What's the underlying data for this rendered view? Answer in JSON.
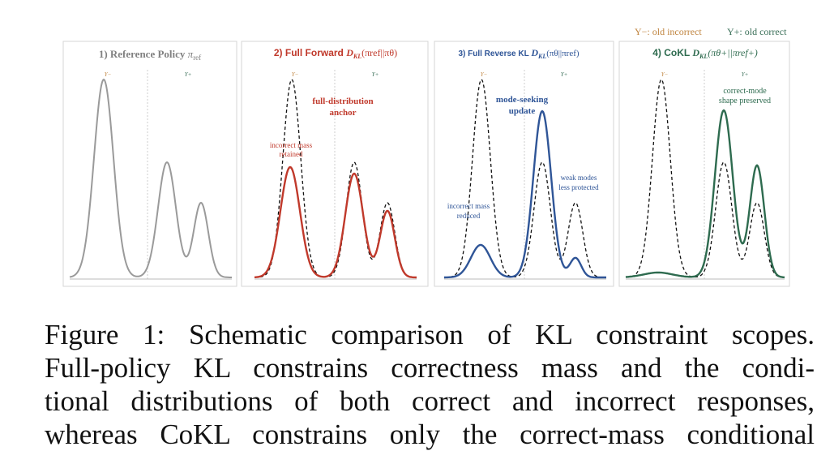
{
  "legend": {
    "incorrect": "Y−: old incorrect",
    "correct": "Y+: old correct",
    "incorrect_color": "#c08540",
    "correct_color": "#3a6f58"
  },
  "panels": [
    {
      "title_text": "1) Reference Policy ",
      "title_math": "π",
      "title_sub": "ref",
      "title_color": "#808080",
      "label_neg": "Y−",
      "label_pos": "Y+",
      "color": "#9a9a9a",
      "annotations": []
    },
    {
      "title_text": "2) Full Forward ",
      "title_math": "D",
      "title_sub": "KL",
      "title_args": "(πref||πθ)",
      "title_color": "#c0392b",
      "label_neg": "Y−",
      "label_pos": "Y+",
      "color": "#c0392b",
      "annotations": [
        {
          "lines": [
            "full-distribution",
            "anchor"
          ],
          "bold": true
        },
        {
          "lines": [
            "incorrect mass",
            "retained"
          ],
          "bold": false
        }
      ]
    },
    {
      "title_text": "3) Full Reverse KL ",
      "title_math": "D",
      "title_sub": "KL",
      "title_args": "(πθ||πref)",
      "title_color": "#2f5597",
      "label_neg": "Y−",
      "label_pos": "Y+",
      "color": "#2f5597",
      "annotations": [
        {
          "lines": [
            "mode-seeking",
            "update"
          ],
          "bold": true
        },
        {
          "lines": [
            "weak modes",
            "less protected"
          ],
          "bold": false
        },
        {
          "lines": [
            "incorrect mass",
            "reduced"
          ],
          "bold": false
        }
      ]
    },
    {
      "title_text": "4) CoKL ",
      "title_math": "D",
      "title_sub": "KL",
      "title_args": "(πθ+||πref+)",
      "title_color": "#2e6b4f",
      "label_neg": "Y−",
      "label_pos": "Y+",
      "color": "#2e6b4f",
      "annotations": [
        {
          "lines": [
            "correct-mode",
            "shape preserved"
          ],
          "bold": false
        }
      ]
    }
  ],
  "caption": {
    "lines": [
      "Figure 1: Schematic comparison of KL constraint scopes.",
      "Full-policy KL constrains correctness mass and the condi-",
      "tional distributions of both correct and incorrect responses,",
      "whereas CoKL constrains only the correct-mass conditional"
    ]
  }
}
